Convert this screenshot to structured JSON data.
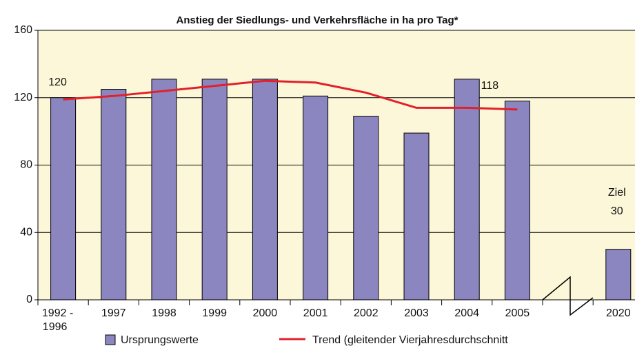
{
  "chart_data": {
    "type": "bar",
    "title": "Anstieg der Siedlungs- und Verkehrsfläche in ha pro Tag*",
    "categories": [
      "1992 - 1996",
      "1997",
      "1998",
      "1999",
      "2000",
      "2001",
      "2002",
      "2003",
      "2004",
      "2005",
      null,
      "2020"
    ],
    "series": [
      {
        "name": "Ursprungswerte",
        "type": "bar",
        "color": "#8b86c0",
        "values": [
          120,
          125,
          131,
          131,
          131,
          121,
          109,
          99,
          131,
          118,
          null,
          30
        ]
      },
      {
        "name": "Trend (gleitender Vierjahresdurchschnitt",
        "type": "line",
        "color": "#e2202c",
        "values": [
          119,
          121,
          124,
          127,
          130,
          129,
          123,
          114,
          114,
          113,
          null,
          null
        ]
      }
    ],
    "annotations": [
      "Ziel"
    ],
    "ylim": [
      0,
      160
    ],
    "yticks": [
      0,
      40,
      80,
      120,
      160
    ],
    "grid": true,
    "background": "#fcf7d8"
  }
}
